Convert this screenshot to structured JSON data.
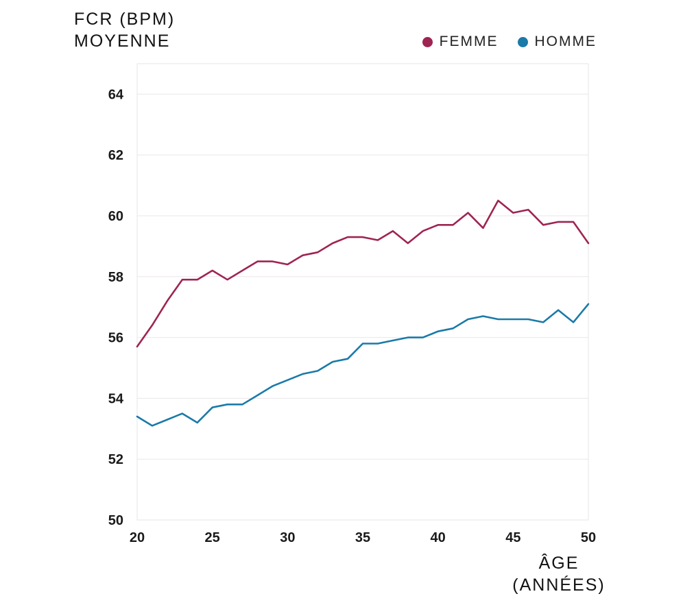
{
  "chart_data": {
    "type": "line",
    "ylabel_lines": [
      "FCR (BPM)",
      "MOYENNE"
    ],
    "xlabel_lines": [
      "ÂGE",
      "(ANNÉES)"
    ],
    "xlim": [
      20,
      50
    ],
    "ylim": [
      50,
      65
    ],
    "xticks": [
      20,
      25,
      30,
      35,
      40,
      45,
      50
    ],
    "yticks": [
      50,
      52,
      54,
      56,
      58,
      60,
      62,
      64
    ],
    "grid": true,
    "legend_position": "top-right",
    "x": [
      20,
      21,
      22,
      23,
      24,
      25,
      26,
      27,
      28,
      29,
      30,
      31,
      32,
      33,
      34,
      35,
      36,
      37,
      38,
      39,
      40,
      41,
      42,
      43,
      44,
      45,
      46,
      47,
      48,
      49,
      50
    ],
    "series": [
      {
        "name": "FEMME",
        "color": "#9e2452",
        "values": [
          55.7,
          56.4,
          57.2,
          57.9,
          57.9,
          58.2,
          57.9,
          58.2,
          58.5,
          58.5,
          58.4,
          58.7,
          58.8,
          59.1,
          59.3,
          59.3,
          59.2,
          59.5,
          59.1,
          59.5,
          59.7,
          59.7,
          60.1,
          59.6,
          60.5,
          60.1,
          60.2,
          59.7,
          59.8,
          59.8,
          59.1
        ]
      },
      {
        "name": "HOMME",
        "color": "#1a7aa8",
        "values": [
          53.4,
          53.1,
          53.3,
          53.5,
          53.2,
          53.7,
          53.8,
          53.8,
          54.1,
          54.4,
          54.6,
          54.8,
          54.9,
          55.2,
          55.3,
          55.8,
          55.8,
          55.9,
          56.0,
          56.0,
          56.2,
          56.3,
          56.6,
          56.7,
          56.6,
          56.6,
          56.6,
          56.5,
          56.9,
          56.5,
          57.1
        ]
      }
    ]
  }
}
